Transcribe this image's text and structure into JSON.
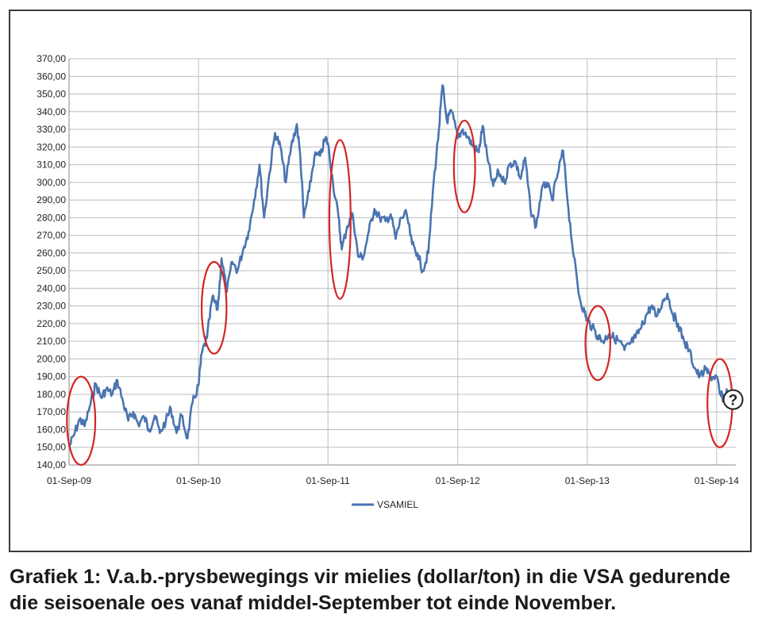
{
  "chart_data": {
    "type": "line",
    "ylim": [
      140,
      370
    ],
    "yticks": [
      "140,00",
      "150,00",
      "160,00",
      "170,00",
      "180,00",
      "190,00",
      "200,00",
      "210,00",
      "220,00",
      "230,00",
      "240,00",
      "250,00",
      "260,00",
      "270,00",
      "280,00",
      "290,00",
      "300,00",
      "310,00",
      "320,00",
      "330,00",
      "340,00",
      "350,00",
      "360,00",
      "370,00"
    ],
    "xticks": [
      "01-Sep-09",
      "01-Sep-10",
      "01-Sep-11",
      "01-Sep-12",
      "01-Sep-13",
      "01-Sep-14"
    ],
    "x_start": "2009-09-01",
    "x_end": "2014-10-25",
    "grid": true,
    "legend_position": "bottom",
    "series": [
      {
        "name": "VSAMIEL",
        "color": "#4a74b0",
        "points": [
          [
            "2009-09-01",
            150
          ],
          [
            "2009-09-15",
            157
          ],
          [
            "2009-10-01",
            166
          ],
          [
            "2009-10-15",
            162
          ],
          [
            "2009-11-01",
            175
          ],
          [
            "2009-11-15",
            186
          ],
          [
            "2009-12-01",
            178
          ],
          [
            "2009-12-15",
            183
          ],
          [
            "2010-01-01",
            180
          ],
          [
            "2010-01-15",
            188
          ],
          [
            "2010-02-01",
            175
          ],
          [
            "2010-02-15",
            165
          ],
          [
            "2010-03-01",
            170
          ],
          [
            "2010-03-15",
            163
          ],
          [
            "2010-04-01",
            167
          ],
          [
            "2010-04-15",
            160
          ],
          [
            "2010-05-01",
            168
          ],
          [
            "2010-05-15",
            158
          ],
          [
            "2010-06-01",
            165
          ],
          [
            "2010-06-15",
            172
          ],
          [
            "2010-07-01",
            158
          ],
          [
            "2010-07-15",
            168
          ],
          [
            "2010-08-01",
            155
          ],
          [
            "2010-08-15",
            175
          ],
          [
            "2010-09-01",
            185
          ],
          [
            "2010-09-10",
            203
          ],
          [
            "2010-09-25",
            212
          ],
          [
            "2010-10-10",
            235
          ],
          [
            "2010-10-25",
            228
          ],
          [
            "2010-11-05",
            257
          ],
          [
            "2010-11-20",
            238
          ],
          [
            "2010-12-05",
            255
          ],
          [
            "2010-12-20",
            250
          ],
          [
            "2011-01-05",
            262
          ],
          [
            "2011-01-20",
            272
          ],
          [
            "2011-02-05",
            290
          ],
          [
            "2011-02-20",
            310
          ],
          [
            "2011-03-05",
            280
          ],
          [
            "2011-03-20",
            305
          ],
          [
            "2011-04-05",
            328
          ],
          [
            "2011-04-20",
            320
          ],
          [
            "2011-05-05",
            300
          ],
          [
            "2011-05-20",
            320
          ],
          [
            "2011-06-05",
            333
          ],
          [
            "2011-06-15",
            315
          ],
          [
            "2011-06-25",
            280
          ],
          [
            "2011-07-10",
            295
          ],
          [
            "2011-07-25",
            315
          ],
          [
            "2011-08-10",
            315
          ],
          [
            "2011-08-25",
            325
          ],
          [
            "2011-09-01",
            322
          ],
          [
            "2011-09-15",
            300
          ],
          [
            "2011-10-01",
            280
          ],
          [
            "2011-10-10",
            262
          ],
          [
            "2011-10-25",
            275
          ],
          [
            "2011-11-10",
            282
          ],
          [
            "2011-11-25",
            258
          ],
          [
            "2011-12-10",
            258
          ],
          [
            "2011-12-25",
            272
          ],
          [
            "2012-01-10",
            285
          ],
          [
            "2012-01-25",
            280
          ],
          [
            "2012-02-10",
            278
          ],
          [
            "2012-02-25",
            282
          ],
          [
            "2012-03-10",
            268
          ],
          [
            "2012-03-25",
            280
          ],
          [
            "2012-04-10",
            282
          ],
          [
            "2012-04-25",
            265
          ],
          [
            "2012-05-10",
            260
          ],
          [
            "2012-05-25",
            250
          ],
          [
            "2012-06-10",
            260
          ],
          [
            "2012-06-25",
            300
          ],
          [
            "2012-07-10",
            330
          ],
          [
            "2012-07-20",
            355
          ],
          [
            "2012-08-01",
            335
          ],
          [
            "2012-08-15",
            340
          ],
          [
            "2012-09-01",
            325
          ],
          [
            "2012-09-15",
            330
          ],
          [
            "2012-10-01",
            325
          ],
          [
            "2012-10-15",
            320
          ],
          [
            "2012-10-30",
            317
          ],
          [
            "2012-11-10",
            332
          ],
          [
            "2012-11-25",
            312
          ],
          [
            "2012-12-10",
            298
          ],
          [
            "2012-12-25",
            306
          ],
          [
            "2013-01-10",
            300
          ],
          [
            "2013-01-25",
            310
          ],
          [
            "2013-02-10",
            312
          ],
          [
            "2013-02-25",
            302
          ],
          [
            "2013-03-10",
            314
          ],
          [
            "2013-03-25",
            285
          ],
          [
            "2013-04-10",
            275
          ],
          [
            "2013-04-25",
            295
          ],
          [
            "2013-05-10",
            300
          ],
          [
            "2013-05-25",
            290
          ],
          [
            "2013-06-10",
            305
          ],
          [
            "2013-06-25",
            318
          ],
          [
            "2013-07-10",
            285
          ],
          [
            "2013-07-25",
            258
          ],
          [
            "2013-08-10",
            235
          ],
          [
            "2013-08-25",
            226
          ],
          [
            "2013-09-01",
            222
          ],
          [
            "2013-09-15",
            218
          ],
          [
            "2013-10-01",
            213
          ],
          [
            "2013-10-15",
            210
          ],
          [
            "2013-11-01",
            214
          ],
          [
            "2013-11-15",
            212
          ],
          [
            "2013-12-01",
            210
          ],
          [
            "2013-12-15",
            205
          ],
          [
            "2014-01-01",
            209
          ],
          [
            "2014-01-15",
            212
          ],
          [
            "2014-02-01",
            218
          ],
          [
            "2014-02-15",
            225
          ],
          [
            "2014-03-01",
            230
          ],
          [
            "2014-03-15",
            224
          ],
          [
            "2014-04-01",
            232
          ],
          [
            "2014-04-15",
            237
          ],
          [
            "2014-05-01",
            225
          ],
          [
            "2014-05-15",
            220
          ],
          [
            "2014-06-01",
            210
          ],
          [
            "2014-06-15",
            205
          ],
          [
            "2014-07-01",
            195
          ],
          [
            "2014-07-15",
            190
          ],
          [
            "2014-08-01",
            194
          ],
          [
            "2014-08-15",
            190
          ],
          [
            "2014-09-01",
            190
          ],
          [
            "2014-09-10",
            180
          ],
          [
            "2014-09-20",
            178
          ],
          [
            "2014-10-01",
            182
          ]
        ]
      }
    ],
    "annotations": [
      {
        "type": "ellipse",
        "color": "#d42525",
        "center": [
          "2009-10-05",
          165
        ],
        "rx_days": 40,
        "ry_value": 25
      },
      {
        "type": "ellipse",
        "color": "#d42525",
        "center": [
          "2010-10-15",
          229
        ],
        "rx_days": 35,
        "ry_value": 26
      },
      {
        "type": "ellipse",
        "color": "#d42525",
        "center": [
          "2011-10-05",
          279
        ],
        "rx_days": 30,
        "ry_value": 45
      },
      {
        "type": "ellipse",
        "color": "#d42525",
        "center": [
          "2012-09-20",
          309
        ],
        "rx_days": 30,
        "ry_value": 26
      },
      {
        "type": "ellipse",
        "color": "#d42525",
        "center": [
          "2013-10-01",
          209
        ],
        "rx_days": 35,
        "ry_value": 21
      },
      {
        "type": "ellipse",
        "color": "#d42525",
        "center": [
          "2014-09-10",
          175
        ],
        "rx_days": 35,
        "ry_value": 25
      }
    ],
    "help_marker": {
      "symbol": "?",
      "at": [
        "2014-09-25",
        177
      ]
    }
  },
  "caption": "Grafiek 1: V.a.b.-prysbewegings vir mielies (dollar/ton) in die VSA gedurende die seisoenale oes vanaf middel-September tot einde November."
}
